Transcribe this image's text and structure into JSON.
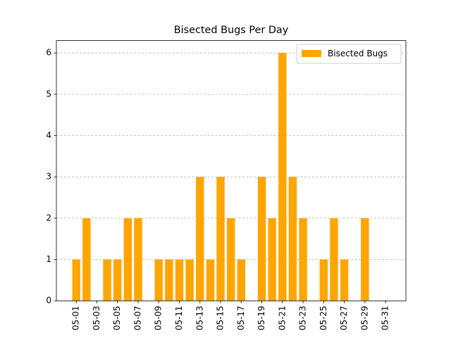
{
  "chart_data": {
    "type": "bar",
    "title": "Bisected Bugs Per Day",
    "categories": [
      "05-01",
      null,
      "05-03",
      null,
      "05-05",
      null,
      "05-07",
      null,
      "05-09",
      null,
      "05-11",
      null,
      "05-13",
      null,
      "05-15",
      null,
      "05-17",
      null,
      "05-19",
      null,
      "05-21",
      null,
      "05-23",
      null,
      "05-25",
      null,
      "05-27",
      null,
      "05-29",
      null,
      "05-31"
    ],
    "series": [
      {
        "name": "Bisected Bugs",
        "color": "#ffa500",
        "values": [
          1,
          2,
          0,
          1,
          1,
          2,
          2,
          0,
          1,
          1,
          1,
          1,
          3,
          1,
          3,
          2,
          1,
          0,
          3,
          2,
          6,
          3,
          2,
          0,
          1,
          2,
          1,
          0,
          2,
          0,
          0
        ]
      }
    ],
    "ylim": [
      0,
      6.3
    ],
    "yticks": [
      0,
      1,
      2,
      3,
      4,
      5,
      6
    ],
    "grid": true,
    "legend": "upper right"
  }
}
